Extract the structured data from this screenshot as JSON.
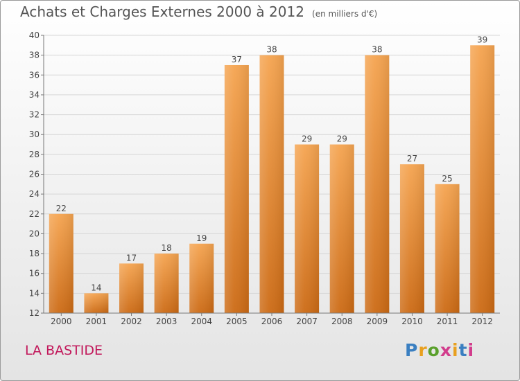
{
  "title": "Achats et Charges Externes 2000 à 2012",
  "subtitle": "(en milliers d'€)",
  "commune": "LA BASTIDE",
  "logo": {
    "letters": [
      "P",
      "r",
      "o",
      "x",
      "i",
      "t",
      "i"
    ],
    "colors": [
      "#3a7fc1",
      "#e8a020",
      "#5aa02c",
      "#d23c8c",
      "#e8a020",
      "#3a7fc1",
      "#d23c8c"
    ]
  },
  "colors": {
    "bar": "#f0913a",
    "bar_dark": "#d06a12",
    "commune": "#c2185b"
  },
  "chart_data": {
    "type": "bar",
    "title": "Achats et Charges Externes 2000 à 2012",
    "subtitle": "(en milliers d'€)",
    "categories": [
      "2000",
      "2001",
      "2002",
      "2003",
      "2004",
      "2005",
      "2006",
      "2007",
      "2008",
      "2009",
      "2010",
      "2011",
      "2012"
    ],
    "values": [
      22,
      14,
      17,
      18,
      19,
      37,
      38,
      29,
      29,
      38,
      27,
      25,
      39
    ],
    "ylim": [
      12,
      40
    ],
    "yticks": [
      12,
      14,
      16,
      18,
      20,
      22,
      24,
      26,
      28,
      30,
      32,
      34,
      36,
      38,
      40
    ],
    "grid": true,
    "data_labels": true
  }
}
